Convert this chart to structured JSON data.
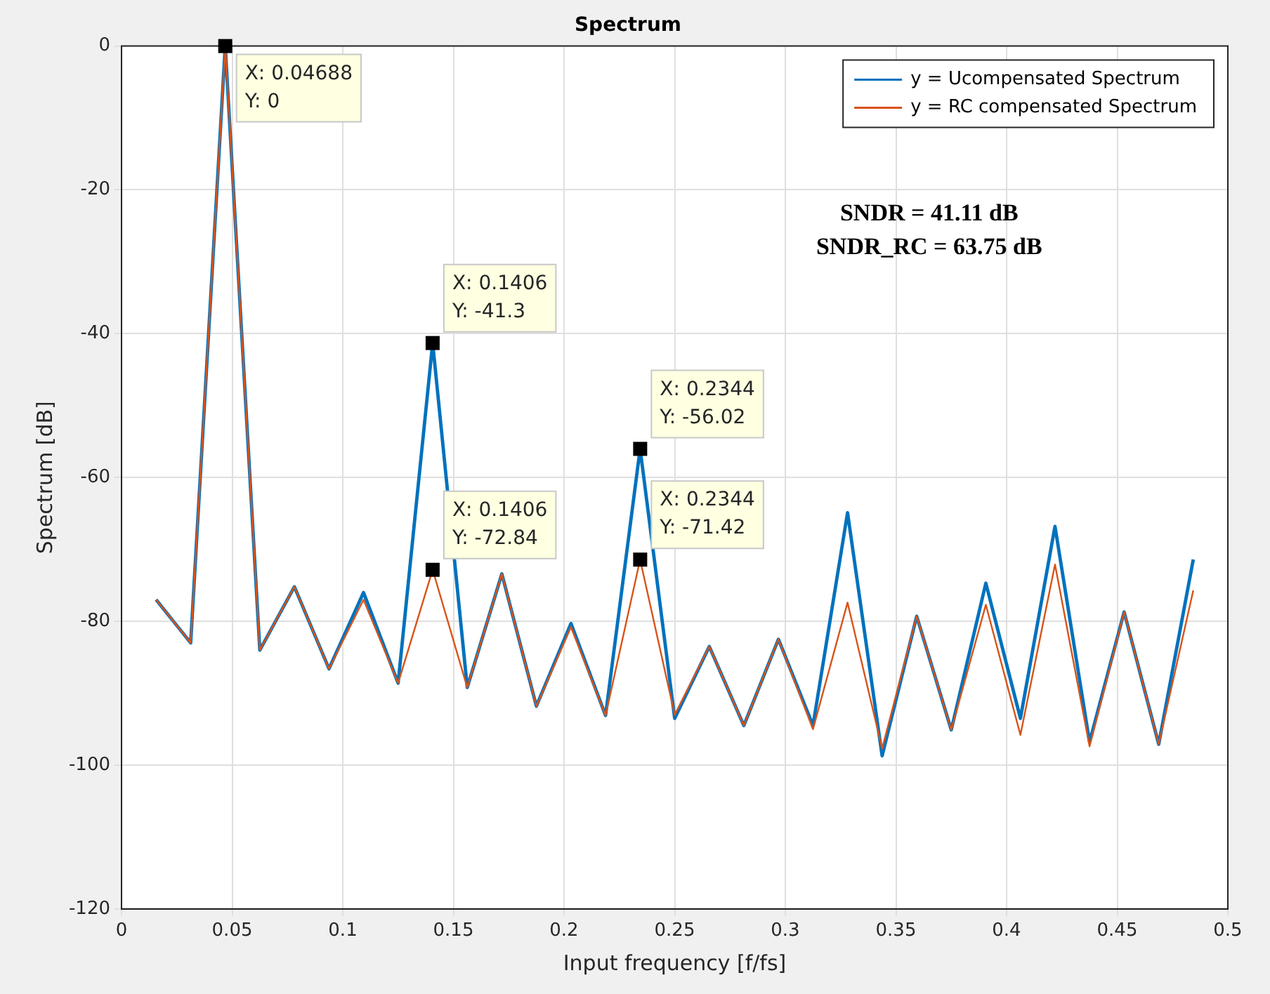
{
  "chart_data": {
    "type": "line",
    "title": "Spectrum",
    "xlabel": "Input frequency [f/fs]",
    "ylabel": "Spectrum [dB]",
    "x": [
      0.015625,
      0.03125,
      0.046875,
      0.0625,
      0.078125,
      0.09375,
      0.109375,
      0.125,
      0.140625,
      0.15625,
      0.171875,
      0.1875,
      0.203125,
      0.21875,
      0.234375,
      0.25,
      0.265625,
      0.28125,
      0.296875,
      0.3125,
      0.328125,
      0.34375,
      0.359375,
      0.375,
      0.390625,
      0.40625,
      0.421875,
      0.4375,
      0.453125,
      0.46875,
      0.484375
    ],
    "series": [
      {
        "name": "y = Ucompensated Spectrum",
        "color": "#0072bd",
        "values": [
          -77,
          -83,
          0,
          -84,
          -75.2,
          -86.6,
          -76,
          -88.6,
          -41.3,
          -89.2,
          -73.4,
          -91.8,
          -80.3,
          -93.1,
          -56.02,
          -93.5,
          -83.5,
          -94.5,
          -82.5,
          -94.5,
          -64.9,
          -98.7,
          -79.3,
          -95.1,
          -74.7,
          -93.5,
          -66.8,
          -96.8,
          -78.7,
          -97.1,
          -71.4
        ]
      },
      {
        "name": "y = RC compensated Spectrum",
        "color": "#d95319",
        "values": [
          -77,
          -83,
          0,
          -84,
          -75.2,
          -86.6,
          -77,
          -88.6,
          -72.84,
          -89.2,
          -73.4,
          -91.8,
          -80.8,
          -93.1,
          -71.42,
          -93,
          -83.5,
          -94.5,
          -82.5,
          -95,
          -77.4,
          -97.7,
          -79.3,
          -95.1,
          -77.7,
          -95.8,
          -72.1,
          -97.4,
          -78.7,
          -97.1,
          -75.7
        ]
      }
    ],
    "xlim": [
      0,
      0.5
    ],
    "xticks": [
      0,
      0.05,
      0.1,
      0.15,
      0.2,
      0.25,
      0.3,
      0.35,
      0.4,
      0.45,
      0.5
    ],
    "ylim": [
      -120,
      0
    ],
    "yticks": [
      -120,
      -100,
      -80,
      -60,
      -40,
      -20,
      0
    ],
    "grid": true,
    "legend": "top right",
    "marker": "none",
    "line_style": "solid",
    "annotations": [
      {
        "text": "X: 0.04688\nY: 0",
        "x": 0.04688,
        "y": 0
      },
      {
        "text": "X: 0.1406\nY: -41.3",
        "x": 0.1406,
        "y": -41.3
      },
      {
        "text": "X: 0.2344\nY: -56.02",
        "x": 0.2344,
        "y": -56.02
      },
      {
        "text": "X: 0.1406\nY: -72.84",
        "x": 0.1406,
        "y": -72.84
      },
      {
        "text": "X: 0.2344\nY: -71.42",
        "x": 0.2344,
        "y": -71.42
      },
      "SNDR = 41.11 dB",
      "SNDR_RC = 63.75 dB"
    ]
  }
}
